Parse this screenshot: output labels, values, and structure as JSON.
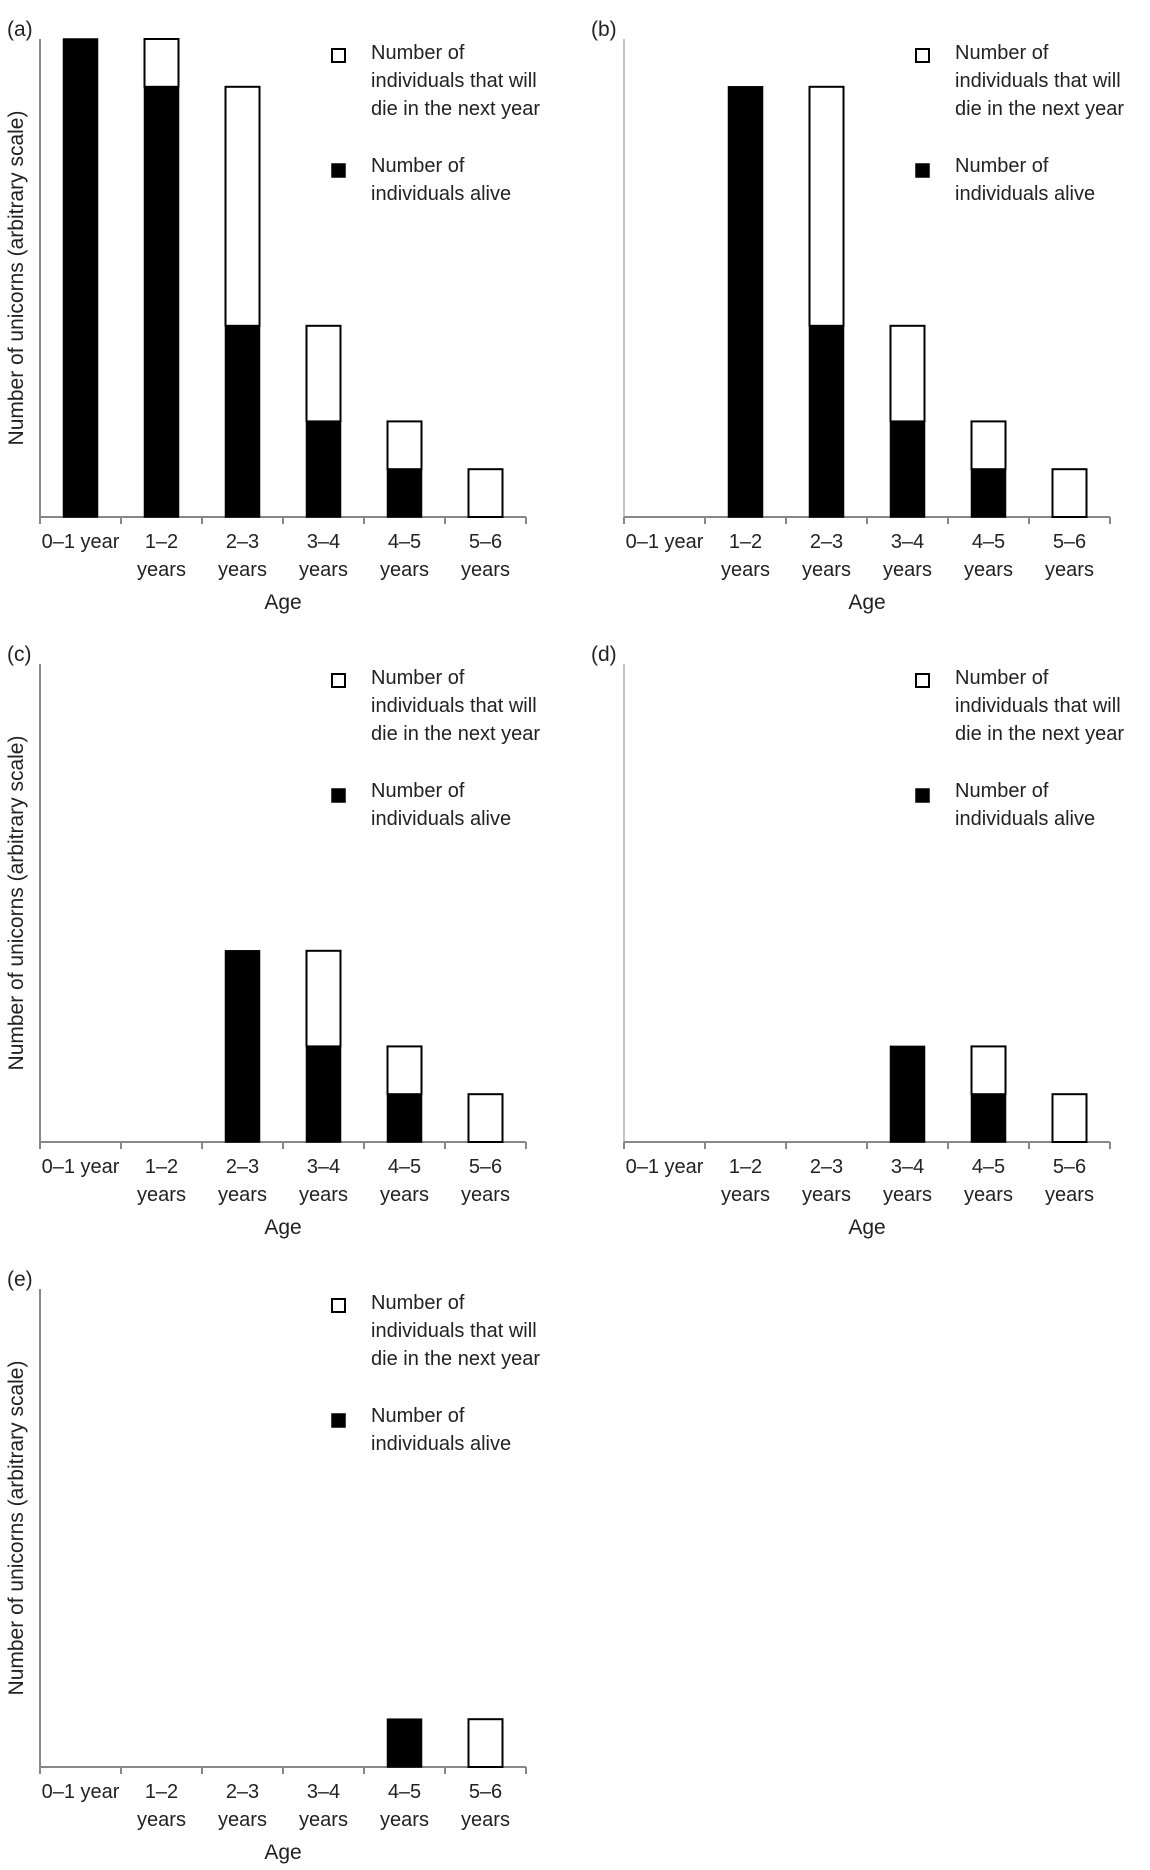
{
  "colors": {
    "alive": "#000000",
    "die": "#ffffff",
    "outline": "#000000",
    "axis": "#888888",
    "text": "#222222"
  },
  "chart_data": [
    {
      "id": "a",
      "type": "bar",
      "stacked": true,
      "panel_label": "(a)",
      "categories": [
        [
          "0–1 year"
        ],
        [
          "1–2",
          "years"
        ],
        [
          "2–3",
          "years"
        ],
        [
          "3–4",
          "years"
        ],
        [
          "4–5",
          "years"
        ],
        [
          "5–6",
          "years"
        ]
      ],
      "series": [
        {
          "name": "Number of individuals alive",
          "legend_lines": [
            "Number of",
            "individuals alive"
          ],
          "values": [
            10,
            9,
            4,
            2,
            1,
            0
          ]
        },
        {
          "name": "Number of individuals that will die in the next year",
          "legend_lines": [
            "Number of",
            "individuals that will",
            "die in the next year"
          ],
          "values": [
            0,
            1,
            5,
            2,
            1,
            1
          ]
        }
      ],
      "xlabel": "Age",
      "ylabel": "Number of unicorns (arbitrary scale)",
      "ylim": [
        0,
        10
      ]
    },
    {
      "id": "b",
      "type": "bar",
      "stacked": true,
      "panel_label": "(b)",
      "categories": [
        [
          "0–1 year"
        ],
        [
          "1–2",
          "years"
        ],
        [
          "2–3",
          "years"
        ],
        [
          "3–4",
          "years"
        ],
        [
          "4–5",
          "years"
        ],
        [
          "5–6",
          "years"
        ]
      ],
      "series": [
        {
          "name": "Number of individuals alive",
          "legend_lines": [
            "Number of",
            "individuals alive"
          ],
          "values": [
            0,
            9,
            4,
            2,
            1,
            0
          ]
        },
        {
          "name": "Number of individuals that will die in the next year",
          "legend_lines": [
            "Number of",
            "individuals that will",
            "die in the next year"
          ],
          "values": [
            0,
            0,
            5,
            2,
            1,
            1
          ]
        }
      ],
      "xlabel": "Age",
      "ylabel": "",
      "ylim": [
        0,
        10
      ]
    },
    {
      "id": "c",
      "type": "bar",
      "stacked": true,
      "panel_label": "(c)",
      "categories": [
        [
          "0–1 year"
        ],
        [
          "1–2",
          "years"
        ],
        [
          "2–3",
          "years"
        ],
        [
          "3–4",
          "years"
        ],
        [
          "4–5",
          "years"
        ],
        [
          "5–6",
          "years"
        ]
      ],
      "series": [
        {
          "name": "Number of individuals alive",
          "legend_lines": [
            "Number of",
            "individuals alive"
          ],
          "values": [
            0,
            0,
            4,
            2,
            1,
            0
          ]
        },
        {
          "name": "Number of individuals that will die in the next year",
          "legend_lines": [
            "Number of",
            "individuals that will",
            "die in the next year"
          ],
          "values": [
            0,
            0,
            0,
            2,
            1,
            1
          ]
        }
      ],
      "xlabel": "Age",
      "ylabel": "Number of unicorns (arbitrary scale)",
      "ylim": [
        0,
        10
      ]
    },
    {
      "id": "d",
      "type": "bar",
      "stacked": true,
      "panel_label": "(d)",
      "categories": [
        [
          "0–1 year"
        ],
        [
          "1–2",
          "years"
        ],
        [
          "2–3",
          "years"
        ],
        [
          "3–4",
          "years"
        ],
        [
          "4–5",
          "years"
        ],
        [
          "5–6",
          "years"
        ]
      ],
      "series": [
        {
          "name": "Number of individuals alive",
          "legend_lines": [
            "Number of",
            "individuals alive"
          ],
          "values": [
            0,
            0,
            0,
            2,
            1,
            0
          ]
        },
        {
          "name": "Number of individuals that will die in the next year",
          "legend_lines": [
            "Number of",
            "individuals that will",
            "die in the next year"
          ],
          "values": [
            0,
            0,
            0,
            0,
            1,
            1
          ]
        }
      ],
      "xlabel": "Age",
      "ylabel": "",
      "ylim": [
        0,
        10
      ]
    },
    {
      "id": "e",
      "type": "bar",
      "stacked": true,
      "panel_label": "(e)",
      "categories": [
        [
          "0–1 year"
        ],
        [
          "1–2",
          "years"
        ],
        [
          "2–3",
          "years"
        ],
        [
          "3–4",
          "years"
        ],
        [
          "4–5",
          "years"
        ],
        [
          "5–6",
          "years"
        ]
      ],
      "series": [
        {
          "name": "Number of individuals alive",
          "legend_lines": [
            "Number of",
            "individuals alive"
          ],
          "values": [
            0,
            0,
            0,
            0,
            1,
            0
          ]
        },
        {
          "name": "Number of individuals that will die in the next year",
          "legend_lines": [
            "Number of",
            "individuals that will",
            "die in the next year"
          ],
          "values": [
            0,
            0,
            0,
            0,
            0,
            1
          ]
        }
      ],
      "xlabel": "Age",
      "ylabel": "Number of unicorns (arbitrary scale)",
      "ylim": [
        0,
        10
      ]
    }
  ]
}
